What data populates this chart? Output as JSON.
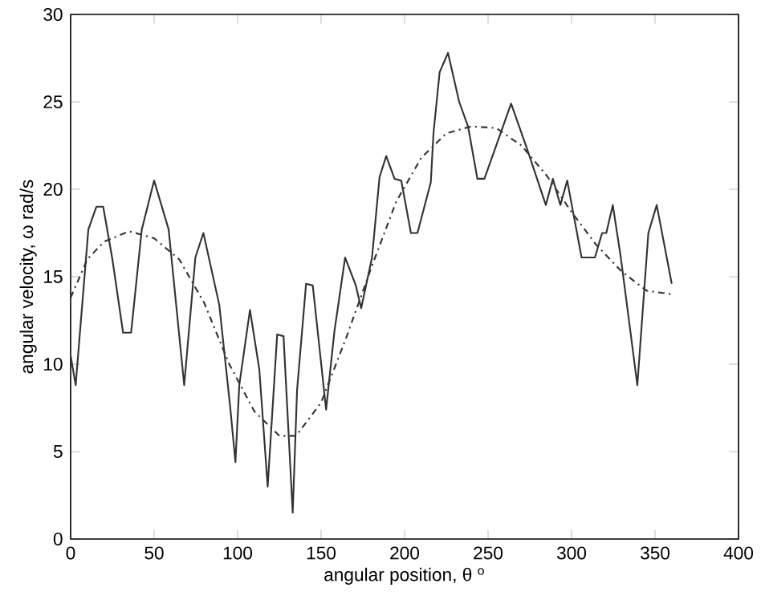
{
  "chart_data": {
    "type": "line",
    "xlabel": "angular position, θ $^{o}$",
    "ylabel": "angular velocity, ω rad/s",
    "xlim": [
      0,
      400
    ],
    "ylim": [
      0,
      30
    ],
    "xticks": [
      0,
      50,
      100,
      150,
      200,
      250,
      300,
      350,
      400
    ],
    "yticks": [
      0,
      5,
      10,
      15,
      20,
      25,
      30
    ],
    "grid": false,
    "series": [
      {
        "color": "#333333",
        "line_style": "solid",
        "x": [
          0,
          3,
          10.6,
          15.4,
          19.5,
          25,
          31.4,
          36.2,
          42.6,
          50,
          58.7,
          68,
          74.7,
          79.5,
          89,
          95.5,
          98.7,
          101,
          107.4,
          113,
          118,
          123.7,
          127.5,
          133,
          135.6,
          141,
          145,
          153,
          158,
          164.4,
          170.8,
          174,
          180.5,
          185,
          189,
          194,
          198,
          203.8,
          207.7,
          215.7,
          217.3,
          221,
          226,
          232.7,
          238,
          243.6,
          247.8,
          263.8,
          273.4,
          284.6,
          288.8,
          293.3,
          297.4,
          306,
          314,
          318.3,
          320.8,
          324.7,
          329.5,
          339.4,
          346,
          351,
          360
        ],
        "values": [
          10.5,
          8.8,
          17.7,
          19.0,
          19.0,
          16.0,
          11.8,
          11.8,
          17.7,
          20.5,
          17.7,
          8.8,
          16.1,
          17.5,
          13.4,
          7.6,
          4.4,
          8.8,
          13.1,
          9.7,
          3.0,
          11.7,
          11.6,
          1.5,
          8.5,
          14.6,
          14.5,
          7.4,
          11.9,
          16.1,
          14.5,
          13.2,
          16.1,
          20.7,
          21.9,
          20.6,
          20.5,
          17.5,
          17.5,
          20.4,
          23.2,
          26.7,
          27.8,
          25.0,
          23.6,
          20.6,
          20.6,
          24.9,
          22.3,
          19.1,
          20.6,
          19.1,
          20.5,
          16.1,
          16.1,
          17.5,
          17.5,
          19.1,
          16.1,
          8.8,
          17.5,
          19.1,
          14.6
        ]
      },
      {
        "color": "#333333",
        "line_style": "dashed",
        "x": [
          0,
          10,
          20,
          35,
          50,
          65,
          80,
          95,
          110,
          125,
          135,
          150,
          165,
          180,
          195,
          210,
          225,
          240,
          255,
          270,
          285,
          300,
          315,
          330,
          345,
          360
        ],
        "values": [
          13.8,
          16.0,
          17.0,
          17.6,
          17.2,
          16.0,
          13.5,
          10.0,
          7.3,
          5.9,
          5.9,
          7.8,
          11.5,
          15.5,
          19.3,
          21.8,
          23.2,
          23.6,
          23.5,
          22.5,
          20.8,
          18.7,
          16.8,
          15.3,
          14.2,
          14.0
        ]
      }
    ]
  }
}
